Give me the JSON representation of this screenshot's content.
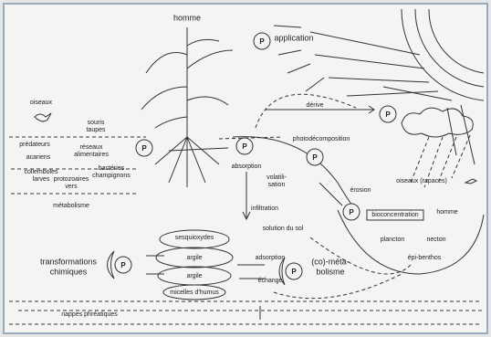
{
  "labels": [
    [
      "homme"
    ],
    [
      "application"
    ],
    [
      "oiseaux"
    ],
    [
      "souris",
      "taupes"
    ],
    [
      "prédateurs"
    ],
    [
      "réseaux",
      "alimentaires"
    ],
    [
      "acariens"
    ],
    [
      "collemboles",
      "larves"
    ],
    [
      "bactéries",
      "champignons"
    ],
    [
      "protozoaires",
      "vers"
    ],
    [
      "métabolisme"
    ],
    [
      "absorption"
    ],
    [
      "volatili-",
      "sation"
    ],
    [
      "infiltration"
    ],
    [
      "solution du sol"
    ],
    [
      "dérive"
    ],
    [
      "photodécomposition"
    ],
    [
      "érosion"
    ],
    [
      "oiseaux (rapaces)"
    ],
    [
      "homme"
    ],
    [
      "bioconcentration"
    ],
    [
      "plancton"
    ],
    [
      "necton"
    ],
    [
      "épi-benthos"
    ],
    [
      "sesquioxydes"
    ],
    [
      "argile"
    ],
    [
      "argile"
    ],
    [
      "micelles d'humus"
    ],
    [
      "transformations",
      "chimiques"
    ],
    [
      "adsorption"
    ],
    [
      "échange"
    ],
    [
      "(co)-méta-",
      "bolisme"
    ],
    [
      "nappes phréatiques"
    ]
  ],
  "p_markers": [
    "P",
    "P",
    "P",
    "P",
    "P",
    "P",
    "P",
    "P"
  ]
}
